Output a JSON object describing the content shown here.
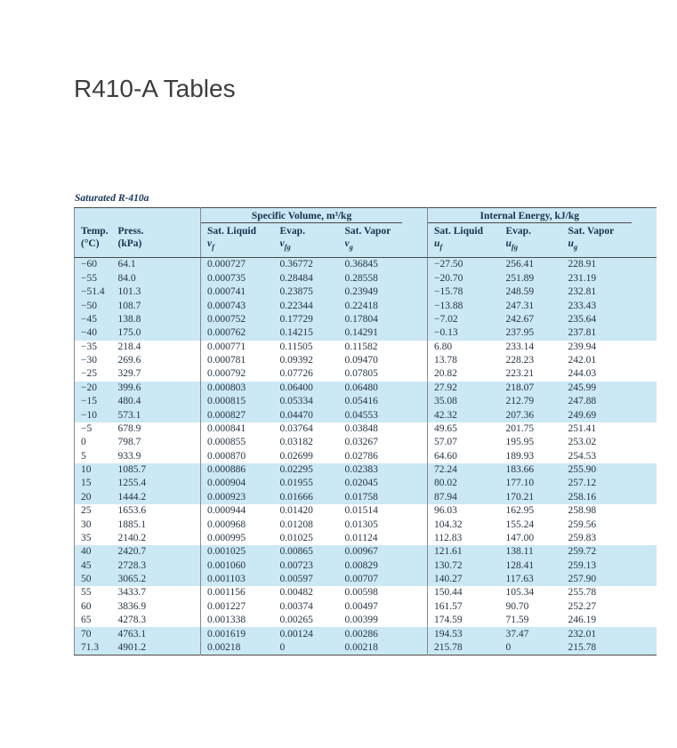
{
  "page": {
    "title": "R410-A Tables"
  },
  "table": {
    "caption": "Saturated R-410a",
    "groups": [
      {
        "key": "specific-volume",
        "label": "Specific Volume, m³/kg"
      },
      {
        "key": "internal-energy",
        "label": "Internal Energy, kJ/kg"
      }
    ],
    "columns": [
      {
        "key": "temp",
        "label": "Temp.",
        "sub": "(°C)"
      },
      {
        "key": "press",
        "label": "Press.",
        "sub": "(kPa)"
      },
      {
        "key": "v-sat-liquid",
        "label": "Sat. Liquid",
        "sym": {
          "base": "v",
          "sub": "f"
        }
      },
      {
        "key": "v-evap",
        "label": "Evap.",
        "sym": {
          "base": "v",
          "sub": "fg"
        }
      },
      {
        "key": "v-sat-vapor",
        "label": "Sat. Vapor",
        "sym": {
          "base": "v",
          "sub": "g"
        }
      },
      {
        "key": "u-sat-liquid",
        "label": "Sat. Liquid",
        "sym": {
          "base": "u",
          "sub": "f"
        }
      },
      {
        "key": "u-evap",
        "label": "Evap.",
        "sym": {
          "base": "u",
          "sub": "fg"
        }
      },
      {
        "key": "u-sat-vapor",
        "label": "Sat. Vapor",
        "sym": {
          "base": "u",
          "sub": "g"
        }
      }
    ],
    "rows": [
      [
        "−60",
        "64.1",
        "0.000727",
        "0.36772",
        "0.36845",
        "−27.50",
        "256.41",
        "228.91"
      ],
      [
        "−55",
        "84.0",
        "0.000735",
        "0.28484",
        "0.28558",
        "−20.70",
        "251.89",
        "231.19"
      ],
      [
        "−51.4",
        "101.3",
        "0.000741",
        "0.23875",
        "0.23949",
        "−15.78",
        "248.59",
        "232.81"
      ],
      [
        "−50",
        "108.7",
        "0.000743",
        "0.22344",
        "0.22418",
        "−13.88",
        "247.31",
        "233.43"
      ],
      [
        "−45",
        "138.8",
        "0.000752",
        "0.17729",
        "0.17804",
        "−7.02",
        "242.67",
        "235.64"
      ],
      [
        "−40",
        "175.0",
        "0.000762",
        "0.14215",
        "0.14291",
        "−0.13",
        "237.95",
        "237.81"
      ],
      [
        "−35",
        "218.4",
        "0.000771",
        "0.11505",
        "0.11582",
        "6.80",
        "233.14",
        "239.94"
      ],
      [
        "−30",
        "269.6",
        "0.000781",
        "0.09392",
        "0.09470",
        "13.78",
        "228.23",
        "242.01"
      ],
      [
        "−25",
        "329.7",
        "0.000792",
        "0.07726",
        "0.07805",
        "20.82",
        "223.21",
        "244.03"
      ],
      [
        "−20",
        "399.6",
        "0.000803",
        "0.06400",
        "0.06480",
        "27.92",
        "218.07",
        "245.99"
      ],
      [
        "−15",
        "480.4",
        "0.000815",
        "0.05334",
        "0.05416",
        "35.08",
        "212.79",
        "247.88"
      ],
      [
        "−10",
        "573.1",
        "0.000827",
        "0.04470",
        "0.04553",
        "42.32",
        "207.36",
        "249.69"
      ],
      [
        "−5",
        "678.9",
        "0.000841",
        "0.03764",
        "0.03848",
        "49.65",
        "201.75",
        "251.41"
      ],
      [
        "0",
        "798.7",
        "0.000855",
        "0.03182",
        "0.03267",
        "57.07",
        "195.95",
        "253.02"
      ],
      [
        "5",
        "933.9",
        "0.000870",
        "0.02699",
        "0.02786",
        "64.60",
        "189.93",
        "254.53"
      ],
      [
        "10",
        "1085.7",
        "0.000886",
        "0.02295",
        "0.02383",
        "72.24",
        "183.66",
        "255.90"
      ],
      [
        "15",
        "1255.4",
        "0.000904",
        "0.01955",
        "0.02045",
        "80.02",
        "177.10",
        "257.12"
      ],
      [
        "20",
        "1444.2",
        "0.000923",
        "0.01666",
        "0.01758",
        "87.94",
        "170.21",
        "258.16"
      ],
      [
        "25",
        "1653.6",
        "0.000944",
        "0.01420",
        "0.01514",
        "96.03",
        "162.95",
        "258.98"
      ],
      [
        "30",
        "1885.1",
        "0.000968",
        "0.01208",
        "0.01305",
        "104.32",
        "155.24",
        "259.56"
      ],
      [
        "35",
        "2140.2",
        "0.000995",
        "0.01025",
        "0.01124",
        "112.83",
        "147.00",
        "259.83"
      ],
      [
        "40",
        "2420.7",
        "0.001025",
        "0.00865",
        "0.00967",
        "121.61",
        "138.11",
        "259.72"
      ],
      [
        "45",
        "2728.3",
        "0.001060",
        "0.00723",
        "0.00829",
        "130.72",
        "128.41",
        "259.13"
      ],
      [
        "50",
        "3065.2",
        "0.001103",
        "0.00597",
        "0.00707",
        "140.27",
        "117.63",
        "257.90"
      ],
      [
        "55",
        "3433.7",
        "0.001156",
        "0.00482",
        "0.00598",
        "150.44",
        "105.34",
        "255.78"
      ],
      [
        "60",
        "3836.9",
        "0.001227",
        "0.00374",
        "0.00497",
        "161.57",
        "90.70",
        "252.27"
      ],
      [
        "65",
        "4278.3",
        "0.001338",
        "0.00265",
        "0.00399",
        "174.59",
        "71.59",
        "246.19"
      ],
      [
        "70",
        "4763.1",
        "0.001619",
        "0.00124",
        "0.00286",
        "194.53",
        "37.47",
        "232.01"
      ],
      [
        "71.3",
        "4901.2",
        "0.00218",
        "0",
        "0.00218",
        "215.78",
        "0",
        "215.78"
      ]
    ],
    "colors": {
      "band_blue": "#cbe8f5",
      "band_white": "#ffffff",
      "rule": "#4a4a4a",
      "text": "#263545",
      "caption": "#17365d"
    }
  }
}
